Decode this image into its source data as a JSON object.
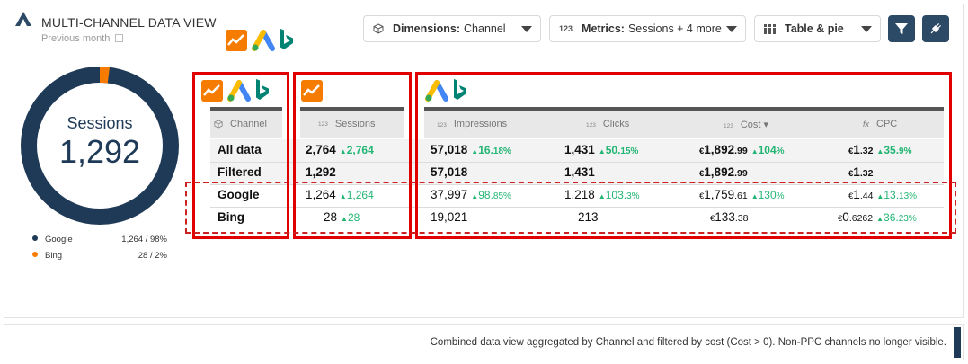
{
  "header": {
    "title": "MULTI-CHANNEL DATA VIEW",
    "subtitle": "Previous month"
  },
  "controls": {
    "dimensions_label": "Dimensions:",
    "dimensions_value": "Channel",
    "metrics_label": "Metrics:",
    "metrics_value": "Sessions + 4 more",
    "metrics_icon": "123",
    "view_value": "Table & pie"
  },
  "donut": {
    "label": "Sessions",
    "value": "1,292",
    "slices": [
      {
        "name": "Google",
        "value": 1264,
        "share": 0.98,
        "color": "#1f3a57"
      },
      {
        "name": "Bing",
        "value": 28,
        "share": 0.02,
        "color": "#f57c00"
      }
    ],
    "legend": [
      {
        "name": "Google",
        "value": "1,264",
        "sep": "/",
        "pct": "98%",
        "color": "#1f3a57"
      },
      {
        "name": "Bing",
        "value": "28",
        "sep": "/",
        "pct": "2%",
        "color": "#f57c00"
      }
    ]
  },
  "table": {
    "headers": {
      "channel": "Channel",
      "sessions": "Sessions",
      "impressions": "Impressions",
      "clicks": "Clicks",
      "cost": "Cost ▾",
      "cpc": "CPC",
      "num_icon": "123",
      "fx_icon": "fx"
    },
    "currency": "€",
    "up": "▲",
    "rows": [
      {
        "channel": "All data",
        "sessions": "2,764",
        "sessions_delta": "2,764",
        "impressions": "57,018",
        "impressions_delta": "16.",
        "impressions_delta_pct": "18%",
        "clicks": "1,431",
        "clicks_delta": "50.",
        "clicks_delta_pct": "15%",
        "cost_int": "1,892",
        "cost_dec": ".99",
        "cost_delta": "104",
        "cost_delta_pct": "%",
        "cpc_int": "1",
        "cpc_dec": ".32",
        "cpc_delta": "35.",
        "cpc_delta_pct": "9%"
      },
      {
        "channel": "Filtered",
        "sessions": "1,292",
        "impressions": "57,018",
        "clicks": "1,431",
        "cost_int": "1,892",
        "cost_dec": ".99",
        "cpc_int": "1",
        "cpc_dec": ".32"
      },
      {
        "channel": "Google",
        "sessions": "1,264",
        "sessions_delta": "1,264",
        "impressions": "37,997",
        "impressions_delta": "98.",
        "impressions_delta_pct": "85%",
        "clicks": "1,218",
        "clicks_delta": "103.",
        "clicks_delta_pct": "3%",
        "cost_int": "1,759",
        "cost_dec": ".61",
        "cost_delta": "130",
        "cost_delta_pct": "%",
        "cpc_int": "1",
        "cpc_dec": ".44",
        "cpc_delta": "13.",
        "cpc_delta_pct": "13%"
      },
      {
        "channel": "Bing",
        "sessions": "28",
        "sessions_delta": "28",
        "impressions": "19,021",
        "clicks": "213",
        "cost_int": "133",
        "cost_dec": ".38",
        "cpc_int": "0",
        "cpc_dec": ".6262",
        "cpc_delta": "36.",
        "cpc_delta_pct": "23%"
      }
    ]
  },
  "footer": {
    "text": "Combined data view aggregated by Channel and filtered by cost (Cost > 0). Non-PPC channels no longer visible."
  },
  "colors": {
    "accent": "#1f3a57",
    "positive": "#22b573",
    "highlight": "#e00000",
    "analytics": "#f57c00"
  }
}
